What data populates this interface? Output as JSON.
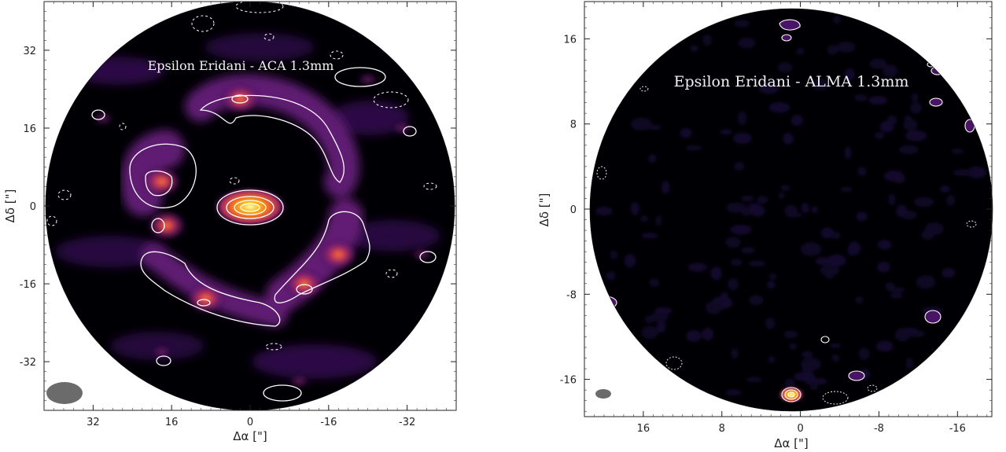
{
  "chart_data": [
    {
      "type": "heatmap",
      "title": "Epsilon Eridani - ACA 1.3mm",
      "xlabel": "Δα [\"]",
      "ylabel": "Δδ [\"]",
      "xlim": [
        42,
        -42
      ],
      "ylim": [
        -42,
        42
      ],
      "xticks": [
        32,
        16,
        0,
        -16,
        -32
      ],
      "yticks": [
        32,
        16,
        0,
        -16,
        -32
      ],
      "tick_labels_x": [
        "32",
        "16",
        "0",
        "-16",
        "-32"
      ],
      "tick_labels_y": [
        "32",
        "16",
        "0",
        "-16",
        "-32"
      ],
      "colormap": "inferno",
      "field_of_view_radius": 40,
      "features": {
        "central_star": {
          "x": 0,
          "y": 0
        },
        "ring_radius": 21,
        "ring_clumps": [
          {
            "x": 18,
            "y": 5
          },
          {
            "x": 2,
            "y": 22
          },
          {
            "x": -18,
            "y": -10
          },
          {
            "x": -11,
            "y": -16
          },
          {
            "x": 9,
            "y": -19
          },
          {
            "x": 17,
            "y": -4
          }
        ],
        "background_sources": [
          {
            "x": -24,
            "y": 26
          },
          {
            "x": 30,
            "y": 18
          },
          {
            "x": 18,
            "y": -30
          },
          {
            "x": -10,
            "y": -36
          },
          {
            "x": -35,
            "y": -10
          },
          {
            "x": -31,
            "y": 16
          }
        ]
      },
      "beam": {
        "x": 36,
        "y": -36
      }
    },
    {
      "type": "heatmap",
      "title": "Epsilon Eridani - ALMA 1.3mm",
      "xlabel": "Δα [\"]",
      "ylabel": "Δδ [\"]",
      "xlim": [
        22,
        -19.5
      ],
      "ylim": [
        -19.5,
        19.5
      ],
      "xticks": [
        16,
        8,
        0,
        -8,
        -16
      ],
      "yticks": [
        16,
        8,
        0,
        -8,
        -16
      ],
      "tick_labels_x": [
        "16",
        "8",
        "0",
        "-8",
        "-16"
      ],
      "tick_labels_y": [
        "16",
        "8",
        "0",
        "-8",
        "-16"
      ],
      "colormap": "inferno",
      "field_of_view_radius": 19.5,
      "features": {
        "central_star": {
          "x": 0,
          "y": -17.9
        },
        "edge_sources": [
          {
            "x": -0.6,
            "y": 18.4
          },
          {
            "x": 0.6,
            "y": 17.0
          },
          {
            "x": -9.5,
            "y": 10.9
          },
          {
            "x": -13.5,
            "y": 13.3
          },
          {
            "x": -14.5,
            "y": -10.2
          },
          {
            "x": -14.8,
            "y": -16.0
          },
          {
            "x": -6.5,
            "y": -15.0
          },
          {
            "x": 17.0,
            "y": -8.8
          },
          {
            "x": -18.0,
            "y": 6.7
          }
        ]
      },
      "beam": {
        "x": 18.2,
        "y": -17.5
      }
    }
  ]
}
